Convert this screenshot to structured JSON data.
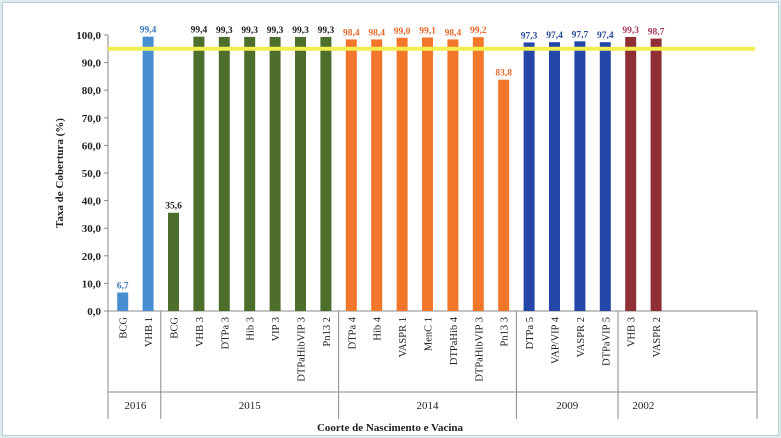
{
  "chart_data": {
    "type": "bar",
    "ylabel": "Taxa de Cobertura (%)",
    "xlabel": "Coorte de Nascimento e Vacina",
    "ylim": [
      0,
      100
    ],
    "yticks": [
      "0,0",
      "10,0",
      "20,0",
      "30,0",
      "40,0",
      "50,0",
      "60,0",
      "70,0",
      "80,0",
      "90,0",
      "100,0"
    ],
    "reference_line": 95,
    "reference_color": "#f2ee4f",
    "groups": [
      {
        "label": "2016",
        "color": "#4a8ed2",
        "label_color": "#3b77bc",
        "bars": [
          {
            "name": "BCG",
            "value": 6.7,
            "label": "6,7"
          },
          {
            "name": "VHB 1",
            "value": 99.4,
            "label": "99,4"
          }
        ]
      },
      {
        "label": "2015",
        "color": "#4e6e2c",
        "label_color": "#222222",
        "bars": [
          {
            "name": "BCG",
            "value": 35.6,
            "label": "35,6"
          },
          {
            "name": "VHB 3",
            "value": 99.4,
            "label": "99,4"
          },
          {
            "name": "DTPa 3",
            "value": 99.3,
            "label": "99,3"
          },
          {
            "name": "Hib 3",
            "value": 99.3,
            "label": "99,3"
          },
          {
            "name": "VIP 3",
            "value": 99.3,
            "label": "99,3"
          },
          {
            "name": "DTPaHibVIP 3",
            "value": 99.3,
            "label": "99,3"
          },
          {
            "name": "Pn13 2",
            "value": 99.3,
            "label": "99,3"
          }
        ]
      },
      {
        "label": "2014",
        "color": "#f2772b",
        "label_color": "#e8692a",
        "bars": [
          {
            "name": "DTPa 4",
            "value": 98.4,
            "label": "98,4"
          },
          {
            "name": "Hib 4",
            "value": 98.4,
            "label": "98,4"
          },
          {
            "name": "VASPR 1",
            "value": 99.0,
            "label": "99,0"
          },
          {
            "name": "MenC 1",
            "value": 99.1,
            "label": "99,1"
          },
          {
            "name": "DTPaHib 4",
            "value": 98.4,
            "label": "98,4"
          },
          {
            "name": "DTPaHibVIP 3",
            "value": 99.2,
            "label": "99,2"
          },
          {
            "name": "Pn13 3",
            "value": 83.8,
            "label": "83,8"
          }
        ]
      },
      {
        "label": "2009",
        "color": "#2446a8",
        "label_color": "#2a4a9a",
        "bars": [
          {
            "name": "DTPa 5",
            "value": 97.3,
            "label": "97,3"
          },
          {
            "name": "VAP/VIP 4",
            "value": 97.4,
            "label": "97,4"
          },
          {
            "name": "VASPR 2",
            "value": 97.7,
            "label": "97,7"
          },
          {
            "name": "DTPaVIP 5",
            "value": 97.4,
            "label": "97,4"
          }
        ]
      },
      {
        "label": "2002",
        "color": "#8f2e35",
        "label_color": "#a83a5c",
        "bars": [
          {
            "name": "VHB 3",
            "value": 99.3,
            "label": "99,3"
          },
          {
            "name": "VASPR 2",
            "value": 98.7,
            "label": "98,7"
          }
        ]
      }
    ]
  }
}
